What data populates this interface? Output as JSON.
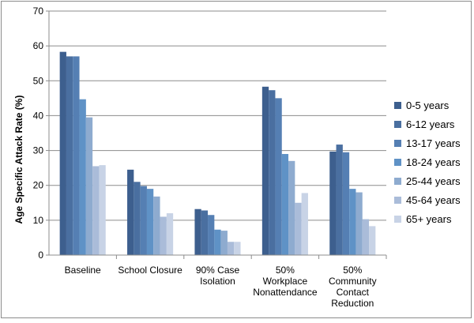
{
  "chart_data": {
    "type": "bar",
    "title": "",
    "xlabel": "",
    "ylabel": "Age Specific Attack Rate (%)",
    "ylim": [
      0,
      70
    ],
    "yticks": [
      0,
      10,
      20,
      30,
      40,
      50,
      60,
      70
    ],
    "grid": true,
    "legend_position": "right",
    "categories": [
      [
        "Baseline"
      ],
      [
        "School Closure"
      ],
      [
        "90% Case",
        "Isolation"
      ],
      [
        "50%",
        "Workplace",
        "Nonattendance"
      ],
      [
        "50%",
        "Community",
        "Contact",
        "Reduction"
      ]
    ],
    "series": [
      {
        "name": "0-5 years",
        "color": "#3d5f8e",
        "values": [
          58.3,
          24.5,
          13.2,
          48.3,
          29.7
        ]
      },
      {
        "name": "6-12 years",
        "color": "#4a6fa0",
        "values": [
          57.0,
          21.0,
          12.8,
          47.3,
          31.7
        ]
      },
      {
        "name": "13-17 years",
        "color": "#557fb3",
        "values": [
          57.0,
          19.8,
          11.5,
          45.0,
          29.5
        ]
      },
      {
        "name": "18-24 years",
        "color": "#5f92c6",
        "values": [
          44.7,
          19.0,
          7.3,
          29.0,
          19.0
        ]
      },
      {
        "name": "25-44 years",
        "color": "#8eabcf",
        "values": [
          39.5,
          16.8,
          7.0,
          27.0,
          18.0
        ]
      },
      {
        "name": "45-64 years",
        "color": "#aabcd9",
        "values": [
          25.5,
          11.0,
          3.8,
          15.0,
          10.3
        ]
      },
      {
        "name": "65+ years",
        "color": "#c8d3e6",
        "values": [
          25.8,
          12.0,
          3.8,
          17.8,
          8.3
        ]
      }
    ]
  }
}
